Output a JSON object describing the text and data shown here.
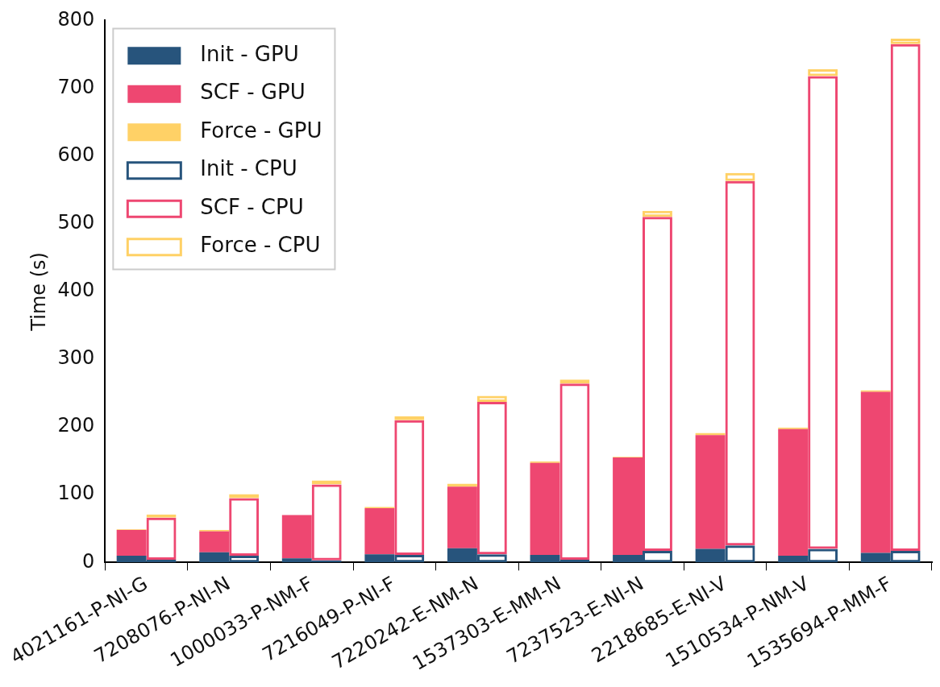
{
  "chart_data": {
    "type": "bar",
    "ylabel": "Time (s)",
    "categories": [
      "4021161-P-NI-G",
      "7208076-P-NI-N",
      "1000033-P-NM-F",
      "7216049-P-NI-F",
      "7220242-E-NM-N",
      "1537303-E-MM-N",
      "7237523-E-NI-N",
      "2218685-E-NI-V",
      "1510534-P-NM-V",
      "1535694-P-MM-F"
    ],
    "series": [
      {
        "name": "Init - GPU",
        "color": "#27547c",
        "base": [
          0,
          0,
          0,
          0,
          0,
          0,
          0,
          0,
          0,
          0
        ],
        "values": [
          10,
          15,
          6,
          12,
          21,
          11,
          11,
          20,
          10,
          14
        ]
      },
      {
        "name": "SCF - GPU",
        "color": "#ee4771",
        "base": [
          10,
          15,
          6,
          12,
          21,
          11,
          11,
          20,
          10,
          14
        ],
        "values": [
          38,
          31,
          64,
          68,
          91,
          136,
          144,
          168,
          187,
          238
        ]
      },
      {
        "name": "Force - GPU",
        "color": "#ffd166",
        "base": [
          48,
          46,
          null,
          80,
          112,
          147,
          155,
          188,
          197,
          252
        ],
        "values": [
          1,
          2,
          null,
          2,
          4,
          2,
          1,
          3,
          2,
          2
        ]
      },
      {
        "name": "Init - CPU",
        "color": "#27547c",
        "base": [
          0,
          0,
          0,
          0,
          0,
          0,
          0,
          0,
          0,
          0
        ],
        "values": [
          4,
          10,
          3,
          11,
          12,
          4,
          17,
          25,
          20,
          17
        ]
      },
      {
        "name": "SCF - CPU",
        "color": "#ee4771",
        "base": [
          4,
          10,
          3,
          11,
          12,
          4,
          17,
          25,
          20,
          17
        ],
        "values": [
          62,
          85,
          112,
          199,
          225,
          260,
          493,
          538,
          698,
          748
        ]
      },
      {
        "name": "Force - CPU",
        "color": "#ffd166",
        "base": [
          66,
          95,
          115,
          210,
          237,
          264,
          510,
          563,
          718,
          765
        ],
        "values": [
          5,
          6,
          6,
          6,
          9,
          6,
          9,
          12,
          10,
          8
        ]
      }
    ],
    "ylim": [
      0,
      800
    ],
    "yticks": [
      0,
      100,
      200,
      300,
      400,
      500,
      600,
      700,
      800
    ],
    "grid": false,
    "legend": "top left"
  }
}
